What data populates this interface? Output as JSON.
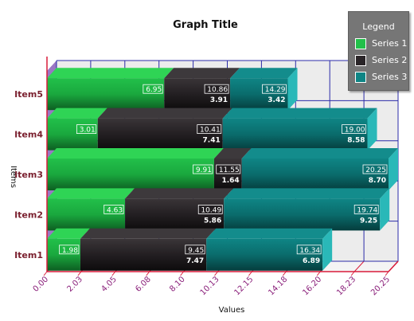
{
  "chart_data": {
    "type": "bar",
    "orientation": "horizontal",
    "stacked": true,
    "style": "3d",
    "title": "Graph Title",
    "xlabel": "Values",
    "ylabel": "Items",
    "categories": [
      "Item1",
      "Item2",
      "Item3",
      "Item4",
      "Item5"
    ],
    "series": [
      {
        "name": "Series 1",
        "color": "#1fb845",
        "values": [
          1.98,
          4.63,
          9.91,
          3.01,
          6.95
        ],
        "labels": [
          "1.98",
          "4.63",
          "9.91",
          "3.01",
          "6.95"
        ]
      },
      {
        "name": "Series 2",
        "color": "#231f22",
        "values": [
          7.47,
          5.86,
          1.64,
          7.41,
          3.91
        ],
        "labels": [
          "9.45",
          "10.49",
          "11.55",
          "10.41",
          "10.86"
        ],
        "labels2": [
          "7.47",
          "5.86",
          "1.64",
          "7.41",
          "3.91"
        ]
      },
      {
        "name": "Series 3",
        "color": "#0f7f7f",
        "values": [
          6.89,
          9.25,
          8.7,
          8.58,
          3.42
        ],
        "labels": [
          "16.34",
          "19.74",
          "20.25",
          "19.00",
          "14.29"
        ],
        "labels2": [
          "6.89",
          "9.25",
          "8.70",
          "8.58",
          "3.42"
        ]
      }
    ],
    "xlim": [
      0,
      20.25
    ],
    "xticks": [
      "0.00",
      "2.03",
      "4.05",
      "6.08",
      "8.10",
      "10.13",
      "12.15",
      "14.18",
      "16.20",
      "18.23",
      "20.25"
    ],
    "grid": true,
    "legend": {
      "title": "Legend",
      "position": "top-right"
    }
  }
}
